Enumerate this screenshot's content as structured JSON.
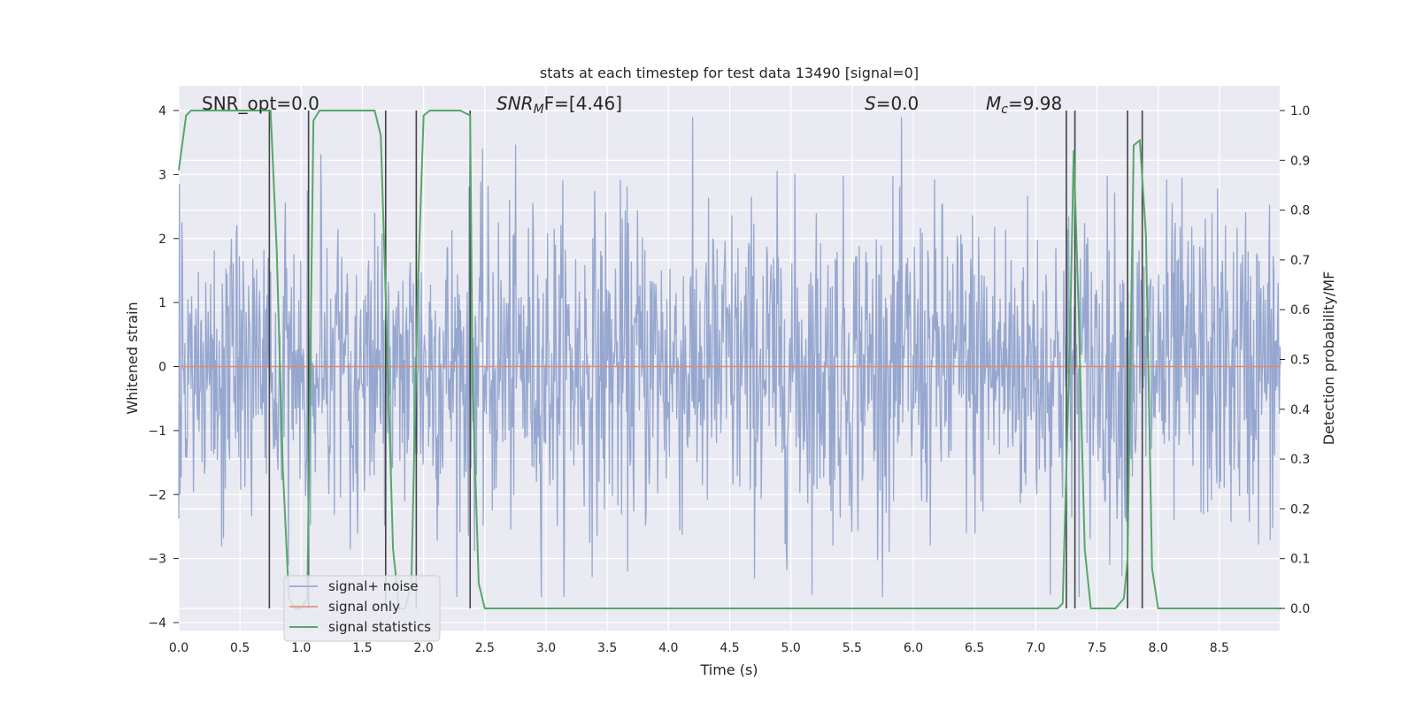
{
  "chart_data": {
    "type": "line",
    "title": "stats at each timestep for test data 13490 [signal=0]",
    "xlabel": "Time (s)",
    "ylabel_left": "Whitened strain",
    "ylabel_right": "Detection probability/MF",
    "xlim": [
      0.0,
      9.0
    ],
    "ylim_left": [
      -4.0,
      4.0
    ],
    "ylim_right": [
      0.0,
      1.0
    ],
    "xticks": [
      "0.0",
      "0.5",
      "1.0",
      "1.5",
      "2.0",
      "2.5",
      "3.0",
      "3.5",
      "4.0",
      "4.5",
      "5.0",
      "5.5",
      "6.0",
      "6.5",
      "7.0",
      "7.5",
      "8.0",
      "8.5"
    ],
    "yticks_left": [
      "4",
      "3",
      "2",
      "1",
      "0",
      "−1",
      "−2",
      "−3",
      "−4"
    ],
    "yticks_right": [
      "1.0",
      "0.9",
      "0.8",
      "0.7",
      "0.6",
      "0.5",
      "0.4",
      "0.3",
      "0.2",
      "0.1",
      "0.0"
    ],
    "grid": true,
    "legend_position": "bottom-left",
    "annotations": [
      {
        "text": "SNR_opt=0.0",
        "x": 0.2,
        "y": 4.1
      },
      {
        "text": "SNR",
        "sub": "M",
        "tail": "F=[4.46]",
        "x": 2.6,
        "y": 4.1
      },
      {
        "text": "S",
        "sub": "",
        "tail": "=0.0",
        "x": 5.6,
        "y": 4.1
      },
      {
        "text": "M",
        "sub": "c",
        "tail": "=9.98",
        "x": 6.6,
        "y": 4.1
      }
    ],
    "series": [
      {
        "name": "signal+ noise",
        "color": "#8da0cb",
        "kind": "noise",
        "amplitude_std": 1.0,
        "peak_min": -3.6,
        "peak_max": 3.9,
        "n_samples": 1800
      },
      {
        "name": "signal only",
        "color": "#e08a6e",
        "kind": "line",
        "x": [
          0.0,
          9.0
        ],
        "y": [
          0.0,
          0.0
        ]
      },
      {
        "name": "signal statistics",
        "color": "#55a868",
        "kind": "line-right",
        "x": [
          0.0,
          0.06,
          0.1,
          0.2,
          0.5,
          0.7,
          0.75,
          0.8,
          0.85,
          0.9,
          0.95,
          1.0,
          1.05,
          1.1,
          1.15,
          1.2,
          1.4,
          1.6,
          1.65,
          1.7,
          1.75,
          1.8,
          1.85,
          1.9,
          1.95,
          2.0,
          2.05,
          2.3,
          2.38,
          2.4,
          2.45,
          2.5,
          3.0,
          4.0,
          5.0,
          6.0,
          7.0,
          7.18,
          7.22,
          7.28,
          7.31,
          7.35,
          7.4,
          7.45,
          7.5,
          7.65,
          7.72,
          7.75,
          7.78,
          7.8,
          7.85,
          7.9,
          7.95,
          8.0,
          8.5,
          9.0
        ],
        "y": [
          0.88,
          0.99,
          1.0,
          1.0,
          1.0,
          1.0,
          1.0,
          0.72,
          0.28,
          0.02,
          0.0,
          0.0,
          0.02,
          0.98,
          1.0,
          1.0,
          1.0,
          1.0,
          0.95,
          0.55,
          0.12,
          0.0,
          0.0,
          0.05,
          0.62,
          0.99,
          1.0,
          1.0,
          0.99,
          0.45,
          0.05,
          0.0,
          0.0,
          0.0,
          0.0,
          0.0,
          0.0,
          0.0,
          0.01,
          0.55,
          0.92,
          0.6,
          0.12,
          0.0,
          0.0,
          0.0,
          0.02,
          0.1,
          0.6,
          0.93,
          0.94,
          0.75,
          0.08,
          0.0,
          0.0,
          0.0
        ]
      }
    ],
    "vertical_lines": [
      0.74,
      1.06,
      1.69,
      1.94,
      2.38,
      7.25,
      7.32,
      7.75,
      7.87
    ],
    "vertical_line_color": "#444444"
  }
}
